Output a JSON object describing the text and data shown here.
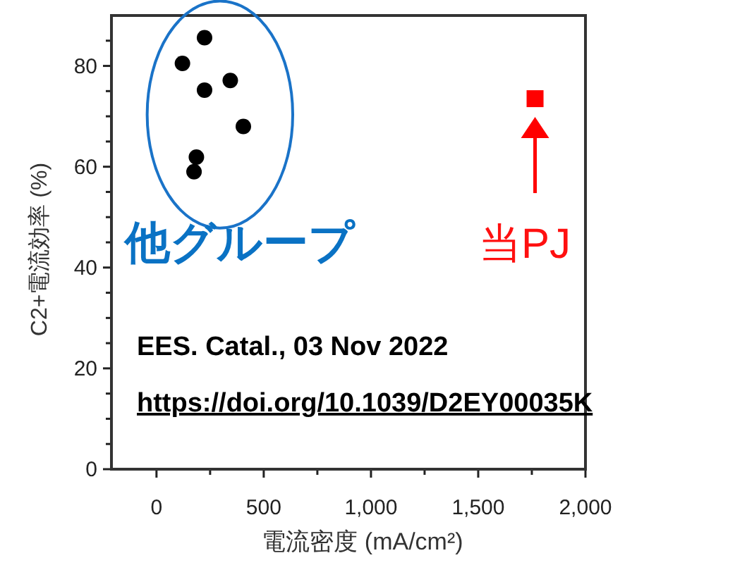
{
  "chart_data": {
    "type": "scatter",
    "xlabel": "電流密度 (mA/cm²)",
    "ylabel": "C2+電流効率 (%)",
    "xlim": [
      -210,
      2000
    ],
    "ylim": [
      0,
      90
    ],
    "xticks": [
      0,
      {
        "value": 250,
        "label": null
      },
      {
        "value": 500,
        "label": "500"
      },
      {
        "value": 750,
        "label": null
      },
      {
        "value": 1000,
        "label": "1,000"
      },
      {
        "value": 1250,
        "label": null
      },
      {
        "value": 1500,
        "label": "1,500"
      },
      {
        "value": 1750,
        "label": null
      },
      {
        "value": 2000,
        "label": "2,000"
      }
    ],
    "yticks": [
      0,
      {
        "value": 5,
        "label": null
      },
      {
        "value": 10,
        "label": null
      },
      {
        "value": 15,
        "label": null
      },
      20,
      {
        "value": 25,
        "label": null
      },
      {
        "value": 30,
        "label": null
      },
      {
        "value": 35,
        "label": null
      },
      40,
      {
        "value": 45,
        "label": null
      },
      {
        "value": 50,
        "label": null
      },
      {
        "value": 55,
        "label": null
      },
      60,
      {
        "value": 65,
        "label": null
      },
      {
        "value": 70,
        "label": null
      },
      {
        "value": 75,
        "label": null
      },
      80,
      {
        "value": 85,
        "label": null
      }
    ],
    "series": [
      {
        "color": "#000000",
        "marker": "circle",
        "x": [
          224,
          121,
          344,
          224,
          405,
          186,
          175
        ],
        "values": [
          85.6,
          80.5,
          77.1,
          75.2,
          68.0,
          61.9,
          59.0
        ]
      },
      {
        "color": "#ff0000",
        "marker": "square",
        "x": [
          1765
        ],
        "values": [
          73.5
        ]
      }
    ],
    "annotations": [
      "他グループ",
      "当PJ",
      "EES. Catal., 03 Nov 2022",
      "https://doi.org/10.1039/D2EY00035K"
    ]
  }
}
